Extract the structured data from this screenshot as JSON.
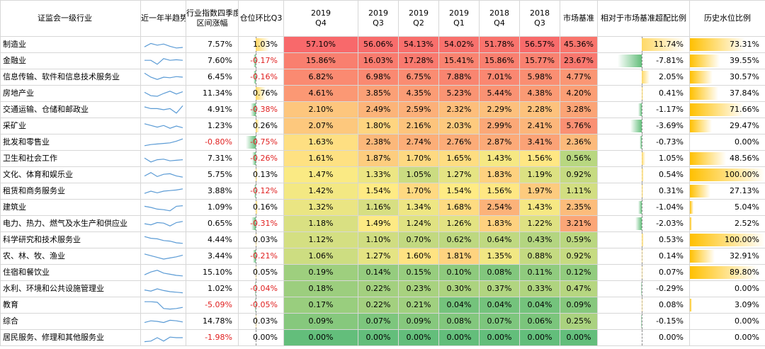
{
  "headers": {
    "industry": "证监会一级行业",
    "trend": "近一年半趋势",
    "index_q4_l1": "行业指数四季度",
    "index_q4_l2": "区间涨幅",
    "pos_change": "仓位环比Q3",
    "p2019q4_l1": "2019",
    "p2019q4_l2": "Q4",
    "p2019q3_l1": "2019",
    "p2019q3_l2": "Q3",
    "p2019q2_l1": "2019",
    "p2019q2_l2": "Q2",
    "p2019q1_l1": "2019",
    "p2019q1_l2": "Q1",
    "p2018q4_l1": "2018",
    "p2018q4_l2": "Q4",
    "p2018q3_l1": "2018",
    "p2018q3_l2": "Q3",
    "market": "市场基准",
    "excess": "相对于市场基准超配比例",
    "hist": "历史水位比例"
  },
  "rows": [
    {
      "name": "制造业",
      "idx": "7.57%",
      "chg": "1.03%",
      "q4_19": "57.10%",
      "q3_19": "56.06%",
      "q2_19": "54.13%",
      "q1_19": "54.02%",
      "q4_18": "51.78%",
      "q3_18": "56.57%",
      "mkt": "45.36%",
      "ex": "11.74%",
      "hist": "73.31%",
      "spark": [
        0.3,
        0.6,
        0.45,
        0.55,
        0.35,
        0.2,
        0.25
      ]
    },
    {
      "name": "金融业",
      "idx": "7.60%",
      "chg": "-0.17%",
      "q4_19": "15.86%",
      "q3_19": "16.03%",
      "q2_19": "17.28%",
      "q1_19": "15.41%",
      "q4_18": "15.86%",
      "q3_18": "15.77%",
      "mkt": "23.67%",
      "ex": "-7.81%",
      "hist": "39.55%",
      "spark": [
        0.55,
        0.55,
        0.2,
        0.7,
        0.55,
        0.6,
        0.55
      ]
    },
    {
      "name": "信息传输、软件和信息技术服务业",
      "idx": "6.45%",
      "chg": "-0.16%",
      "q4_19": "6.82%",
      "q3_19": "6.98%",
      "q2_19": "6.75%",
      "q1_19": "7.88%",
      "q4_18": "7.01%",
      "q3_18": "5.98%",
      "mkt": "4.77%",
      "ex": "2.05%",
      "hist": "30.57%",
      "spark": [
        0.85,
        0.5,
        0.3,
        0.5,
        0.45,
        0.55,
        0.5
      ]
    },
    {
      "name": "房地产业",
      "idx": "11.34%",
      "chg": "0.76%",
      "q4_19": "4.61%",
      "q3_19": "3.85%",
      "q2_19": "4.35%",
      "q1_19": "5.23%",
      "q4_18": "5.44%",
      "q3_18": "4.38%",
      "mkt": "4.20%",
      "ex": "0.41%",
      "hist": "37.84%",
      "spark": [
        0.6,
        0.3,
        0.25,
        0.5,
        0.7,
        0.45,
        0.65
      ]
    },
    {
      "name": "交通运输、仓储和邮政业",
      "idx": "4.91%",
      "chg": "-0.38%",
      "q4_19": "2.10%",
      "q3_19": "2.49%",
      "q2_19": "2.59%",
      "q1_19": "2.32%",
      "q4_18": "2.29%",
      "q3_18": "2.28%",
      "mkt": "3.28%",
      "ex": "-1.17%",
      "hist": "71.66%",
      "spark": [
        0.75,
        0.6,
        0.6,
        0.5,
        0.6,
        0.2,
        0.85
      ]
    },
    {
      "name": "采矿业",
      "idx": "1.23%",
      "chg": "0.26%",
      "q4_19": "2.07%",
      "q3_19": "1.80%",
      "q2_19": "2.16%",
      "q1_19": "2.03%",
      "q4_18": "2.99%",
      "q3_18": "2.41%",
      "mkt": "5.76%",
      "ex": "-3.69%",
      "hist": "29.47%",
      "spark": [
        0.7,
        0.55,
        0.4,
        0.55,
        0.3,
        0.5,
        0.35
      ]
    },
    {
      "name": "批发和零售业",
      "idx": "-0.80%",
      "chg": "-0.75%",
      "q4_19": "1.63%",
      "q3_19": "2.38%",
      "q2_19": "2.74%",
      "q1_19": "2.76%",
      "q4_18": "2.87%",
      "q3_18": "3.41%",
      "mkt": "2.36%",
      "ex": "-0.73%",
      "hist": "0.00%",
      "spark": [
        0.2,
        0.3,
        0.35,
        0.4,
        0.45,
        0.6,
        0.8
      ]
    },
    {
      "name": "卫生和社会工作",
      "idx": "7.31%",
      "chg": "-0.26%",
      "q4_19": "1.61%",
      "q3_19": "1.87%",
      "q2_19": "1.70%",
      "q1_19": "1.65%",
      "q4_18": "1.43%",
      "q3_18": "1.56%",
      "mkt": "0.56%",
      "ex": "1.05%",
      "hist": "48.56%",
      "spark": [
        0.55,
        0.2,
        0.4,
        0.45,
        0.3,
        0.35,
        0.4
      ]
    },
    {
      "name": "文化、体育和娱乐业",
      "idx": "5.75%",
      "chg": "0.13%",
      "q4_19": "1.47%",
      "q3_19": "1.33%",
      "q2_19": "1.05%",
      "q1_19": "1.27%",
      "q4_18": "1.83%",
      "q3_18": "1.19%",
      "mkt": "0.92%",
      "ex": "0.54%",
      "hist": "100.00%",
      "spark": [
        0.4,
        0.7,
        0.35,
        0.55,
        0.6,
        0.4,
        0.3
      ]
    },
    {
      "name": "租赁和商务服务业",
      "idx": "3.88%",
      "chg": "-0.12%",
      "q4_19": "1.42%",
      "q3_19": "1.54%",
      "q2_19": "1.70%",
      "q1_19": "1.54%",
      "q4_18": "1.56%",
      "q3_18": "1.97%",
      "mkt": "1.11%",
      "ex": "0.31%",
      "hist": "27.13%",
      "spark": [
        0.3,
        0.5,
        0.35,
        0.5,
        0.55,
        0.6,
        0.7
      ]
    },
    {
      "name": "建筑业",
      "idx": "1.09%",
      "chg": "0.16%",
      "q4_19": "1.32%",
      "q3_19": "1.16%",
      "q2_19": "1.34%",
      "q1_19": "1.68%",
      "q4_18": "2.54%",
      "q3_18": "1.43%",
      "mkt": "2.35%",
      "ex": "-1.04%",
      "hist": "5.04%",
      "spark": [
        0.6,
        0.5,
        0.35,
        0.3,
        0.2,
        0.6,
        0.65
      ]
    },
    {
      "name": "电力、热力、燃气及水生产和供应业",
      "idx": "0.65%",
      "chg": "-0.31%",
      "q4_19": "1.18%",
      "q3_19": "1.49%",
      "q2_19": "1.24%",
      "q1_19": "1.26%",
      "q4_18": "1.83%",
      "q3_18": "1.22%",
      "mkt": "3.21%",
      "ex": "-2.03%",
      "hist": "2.52%",
      "spark": [
        0.5,
        0.4,
        0.6,
        0.55,
        0.3,
        0.6,
        0.7
      ]
    },
    {
      "name": "科学研究和技术服务业",
      "idx": "4.44%",
      "chg": "0.03%",
      "q4_19": "1.12%",
      "q3_19": "1.10%",
      "q2_19": "0.70%",
      "q1_19": "0.62%",
      "q4_18": "0.64%",
      "q3_18": "0.43%",
      "mkt": "0.59%",
      "ex": "0.53%",
      "hist": "100.00%",
      "spark": [
        0.8,
        0.65,
        0.6,
        0.45,
        0.4,
        0.25,
        0.2
      ]
    },
    {
      "name": "农、林、牧、渔业",
      "idx": "3.44%",
      "chg": "-0.21%",
      "q4_19": "1.06%",
      "q3_19": "1.27%",
      "q2_19": "1.60%",
      "q1_19": "1.81%",
      "q4_18": "1.35%",
      "q3_18": "0.88%",
      "mkt": "0.92%",
      "ex": "0.14%",
      "hist": "32.91%",
      "spark": [
        0.7,
        0.55,
        0.4,
        0.25,
        0.35,
        0.45,
        0.6
      ]
    },
    {
      "name": "住宿和餐饮业",
      "idx": "15.10%",
      "chg": "0.05%",
      "q4_19": "0.19%",
      "q3_19": "0.14%",
      "q2_19": "0.15%",
      "q1_19": "0.10%",
      "q4_18": "0.08%",
      "q3_18": "0.11%",
      "mkt": "0.12%",
      "ex": "0.07%",
      "hist": "89.80%",
      "spark": [
        0.3,
        0.55,
        0.7,
        0.45,
        0.35,
        0.25,
        0.2
      ]
    },
    {
      "name": "水利、环境和公共设施管理业",
      "idx": "1.02%",
      "chg": "-0.04%",
      "q4_19": "0.18%",
      "q3_19": "0.22%",
      "q2_19": "0.23%",
      "q1_19": "0.30%",
      "q4_18": "0.37%",
      "q3_18": "0.33%",
      "mkt": "0.47%",
      "ex": "-0.29%",
      "hist": "0.00%",
      "spark": [
        0.4,
        0.3,
        0.5,
        0.35,
        0.25,
        0.2,
        0.15
      ]
    },
    {
      "name": "教育",
      "idx": "-5.09%",
      "chg": "-0.05%",
      "q4_19": "0.17%",
      "q3_19": "0.22%",
      "q2_19": "0.21%",
      "q1_19": "0.04%",
      "q4_18": "0.04%",
      "q3_18": "0.04%",
      "mkt": "0.09%",
      "ex": "0.08%",
      "hist": "3.09%",
      "spark": [
        0.8,
        0.8,
        0.75,
        0.2,
        0.15,
        0.2,
        0.3
      ]
    },
    {
      "name": "综合",
      "idx": "14.78%",
      "chg": "0.03%",
      "q4_19": "0.09%",
      "q3_19": "0.07%",
      "q2_19": "0.09%",
      "q1_19": "0.08%",
      "q4_18": "0.07%",
      "q3_18": "0.06%",
      "mkt": "0.25%",
      "ex": "-0.15%",
      "hist": "0.00%",
      "spark": [
        0.4,
        0.55,
        0.5,
        0.4,
        0.6,
        0.55,
        0.45
      ]
    },
    {
      "name": "居民服务、修理和其他服务业",
      "idx": "-1.98%",
      "chg": "0.00%",
      "q4_19": "0.00%",
      "q3_19": "0.00%",
      "q2_19": "0.00%",
      "q1_19": "0.00%",
      "q4_18": "0.00%",
      "q3_18": "0.00%",
      "mkt": "0.00%",
      "ex": "0.00%",
      "hist": "0.00%",
      "spark": [
        0.15,
        0.2,
        0.5,
        0.2,
        0.55,
        0.5,
        0.5
      ]
    }
  ],
  "colors": {
    "heat_high": "#f8696b",
    "heat_mid": "#ffeb84",
    "heat_low": "#63be7b",
    "spark_line": "#5b9bd5",
    "bar_pos": "#ffd966",
    "bar_neg": "#63be7b",
    "hist_bar": "#ffc000",
    "negative_text": "#e02020"
  }
}
